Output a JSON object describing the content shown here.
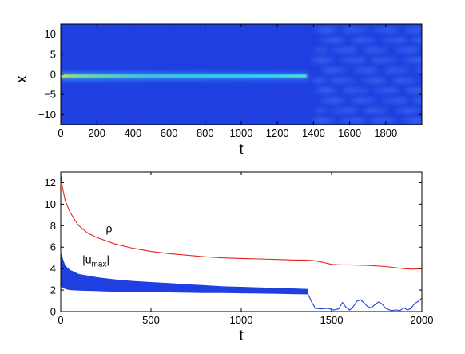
{
  "chart_data": [
    {
      "type": "heatmap",
      "title": "",
      "xlabel": "t",
      "ylabel": "x",
      "xlim": [
        0,
        2000
      ],
      "ylim": [
        12.5,
        -12.5
      ],
      "y_inverted": true,
      "xticks": [
        0,
        200,
        400,
        600,
        800,
        1000,
        1200,
        1400,
        1600,
        1800
      ],
      "yticks": [
        -10,
        -5,
        0,
        5,
        10
      ],
      "colormap": "jet",
      "background_color": "#1f3fe0",
      "features": [
        {
          "region": "t 0-1370, x = 0",
          "description": "bright localized beam, yellow-green near t=0 fading to cyan by t=1370",
          "peak_color": "#c8f050"
        },
        {
          "region": "t 1380-2000, x = -12 to 12",
          "description": "breakup into weak periodic blobs",
          "blob_color": "#4a80f0"
        }
      ]
    },
    {
      "type": "line",
      "title": "",
      "xlabel": "t",
      "ylabel": "",
      "xlim": [
        0,
        2000
      ],
      "ylim": [
        0,
        13
      ],
      "xticks": [
        0,
        500,
        1000,
        1500,
        2000
      ],
      "yticks": [
        0,
        2,
        4,
        6,
        8,
        10,
        12
      ],
      "series": [
        {
          "name": "ρ",
          "color": "#e8221c",
          "x": [
            0,
            10,
            25,
            50,
            75,
            100,
            150,
            200,
            250,
            300,
            400,
            500,
            600,
            700,
            800,
            900,
            1000,
            1100,
            1200,
            1300,
            1350,
            1400,
            1450,
            1500,
            1550,
            1600,
            1700,
            1800,
            1900,
            1950,
            2000
          ],
          "y": [
            12.7,
            11.5,
            10.3,
            9.3,
            8.6,
            8.0,
            7.3,
            6.9,
            6.6,
            6.3,
            5.9,
            5.6,
            5.4,
            5.25,
            5.1,
            5.0,
            4.95,
            4.9,
            4.85,
            4.8,
            4.8,
            4.75,
            4.6,
            4.4,
            4.35,
            4.35,
            4.3,
            4.2,
            4.0,
            3.95,
            4.0
          ]
        },
        {
          "name": "|u_max|",
          "color": "#1f3fe0",
          "style": "fast oscillation band for t < 1380",
          "x": [
            0,
            25,
            50,
            100,
            200,
            300,
            400,
            500,
            600,
            700,
            800,
            900,
            1000,
            1100,
            1200,
            1300,
            1370
          ],
          "y_upper": [
            5.5,
            4.3,
            3.9,
            3.5,
            3.2,
            3.0,
            2.85,
            2.75,
            2.65,
            2.55,
            2.45,
            2.35,
            2.3,
            2.25,
            2.2,
            2.15,
            2.1
          ],
          "y_lower": [
            2.3,
            2.1,
            2.0,
            1.95,
            1.9,
            1.85,
            1.8,
            1.8,
            1.78,
            1.75,
            1.72,
            1.72,
            1.7,
            1.68,
            1.66,
            1.62,
            1.6
          ],
          "x_tail": [
            1370,
            1390,
            1410,
            1440,
            1480,
            1510,
            1540,
            1560,
            1580,
            1600,
            1620,
            1640,
            1660,
            1680,
            1700,
            1720,
            1740,
            1760,
            1780,
            1800,
            1830,
            1860,
            1880,
            1900,
            1920,
            1940,
            1960,
            1980,
            2000
          ],
          "y_tail": [
            1.6,
            0.9,
            0.3,
            0.25,
            0.3,
            0.15,
            0.25,
            0.85,
            0.4,
            0.15,
            0.45,
            0.95,
            1.1,
            0.8,
            0.45,
            0.35,
            0.65,
            0.9,
            0.7,
            0.3,
            0.1,
            0.15,
            0.1,
            0.35,
            0.15,
            0.3,
            0.75,
            0.95,
            1.25
          ]
        }
      ],
      "annotations": [
        {
          "text": "ρ",
          "x": 250,
          "y": 7.4
        },
        {
          "text": "|u",
          "sub": "max",
          "suffix": "|",
          "x": 120,
          "y": 4.5
        }
      ]
    }
  ]
}
